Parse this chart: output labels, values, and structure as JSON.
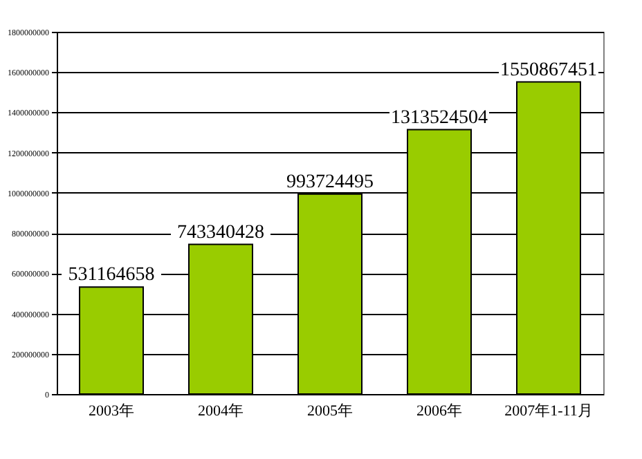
{
  "chart_data": {
    "type": "bar",
    "categories": [
      "2003年",
      "2004年",
      "2005年",
      "2006年",
      "2007年1-11月"
    ],
    "values": [
      531164658,
      743340428,
      993724495,
      1313524504,
      1550867451
    ],
    "color": "#99cc00",
    "ylim": [
      0,
      1800000000
    ],
    "yticks": [
      0,
      200000000,
      400000000,
      600000000,
      800000000,
      1000000000,
      1200000000,
      1400000000,
      1600000000,
      1800000000
    ],
    "grid": "y",
    "data_labels": true
  }
}
